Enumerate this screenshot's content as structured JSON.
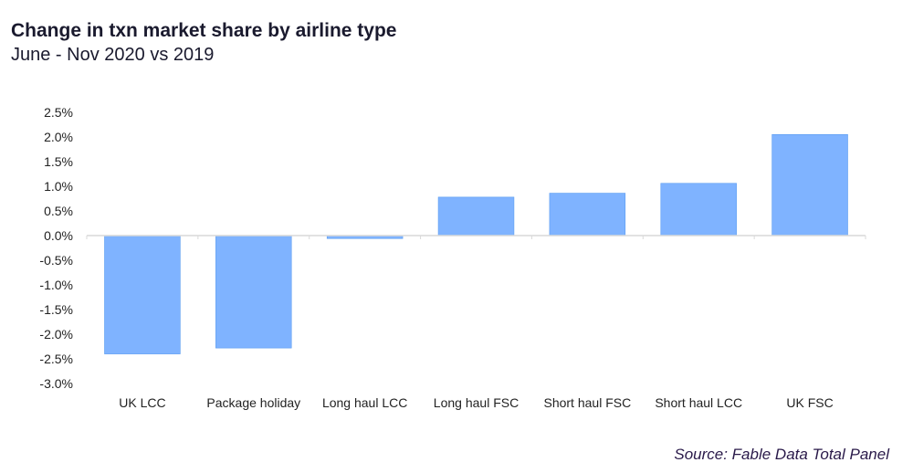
{
  "chart_data": {
    "type": "bar",
    "title": "Change in txn market share by airline type",
    "subtitle": "June - Nov 2020 vs 2019",
    "categories": [
      "UK LCC",
      "Package holiday",
      "Long haul LCC",
      "Long haul FSC",
      "Short haul FSC",
      "Short haul LCC",
      "UK FSC"
    ],
    "values": [
      -2.4,
      -2.28,
      -0.06,
      0.78,
      0.86,
      1.06,
      2.05
    ],
    "ylim": [
      -3.0,
      2.5
    ],
    "yticks": [
      2.5,
      2.0,
      1.5,
      1.0,
      0.5,
      0.0,
      -0.5,
      -1.0,
      -1.5,
      -2.0,
      -2.5,
      -3.0
    ],
    "ytick_labels": [
      "2.5%",
      "2.0%",
      "1.5%",
      "1.0%",
      "0.5%",
      "0.0%",
      "-0.5%",
      "-1.0%",
      "-1.5%",
      "-2.0%",
      "-2.5%",
      "-3.0%"
    ],
    "xlabel": "",
    "ylabel": "",
    "grid": false,
    "bar_color": "#7fb3ff",
    "source": "Source: Fable Data Total Panel"
  }
}
